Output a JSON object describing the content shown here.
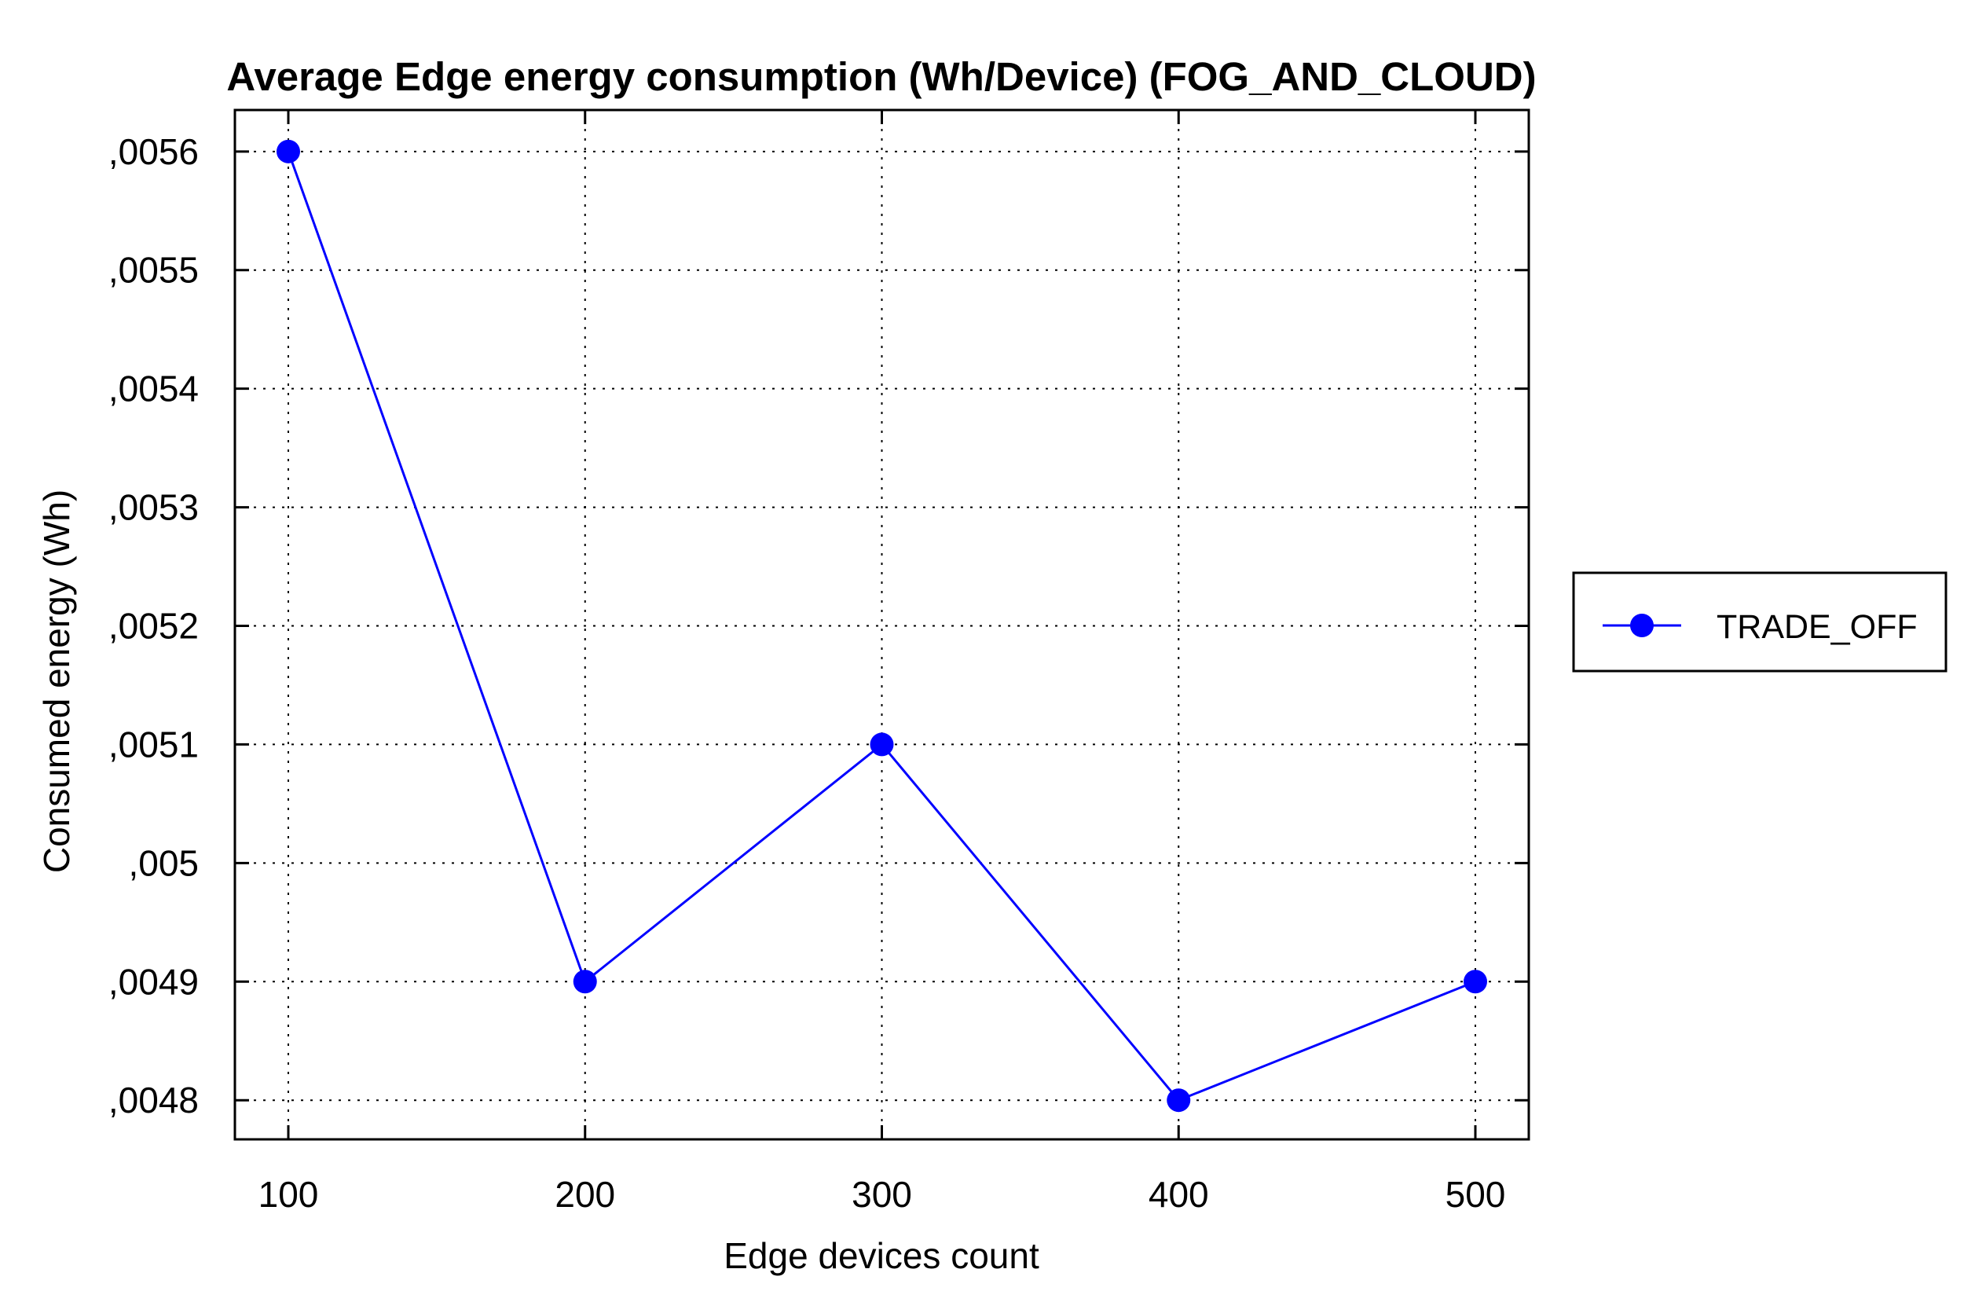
{
  "chart_data": {
    "type": "line",
    "title": "Average Edge energy consumption (Wh/Device) (FOG_AND_CLOUD)",
    "xlabel": "Edge devices count",
    "ylabel": "Consumed energy (Wh)",
    "x": [
      100,
      200,
      300,
      400,
      500
    ],
    "x_tick_labels": [
      "100",
      "200",
      "300",
      "400",
      "500"
    ],
    "y_ticks": [
      0.0048,
      0.0049,
      0.005,
      0.0051,
      0.0052,
      0.0053,
      0.0054,
      0.0055,
      0.0056
    ],
    "y_tick_labels": [
      ",0048",
      ",0049",
      ",005",
      ",0051",
      ",0052",
      ",0053",
      ",0054",
      ",0055",
      ",0056"
    ],
    "xlim": [
      82,
      518
    ],
    "ylim": [
      0.004767,
      0.005635
    ],
    "grid": true,
    "legend_position": "right",
    "series": [
      {
        "name": "TRADE_OFF",
        "color": "#0000ff",
        "marker": "circle",
        "values": [
          0.0056,
          0.0049,
          0.0051,
          0.0048,
          0.0049
        ]
      }
    ]
  }
}
